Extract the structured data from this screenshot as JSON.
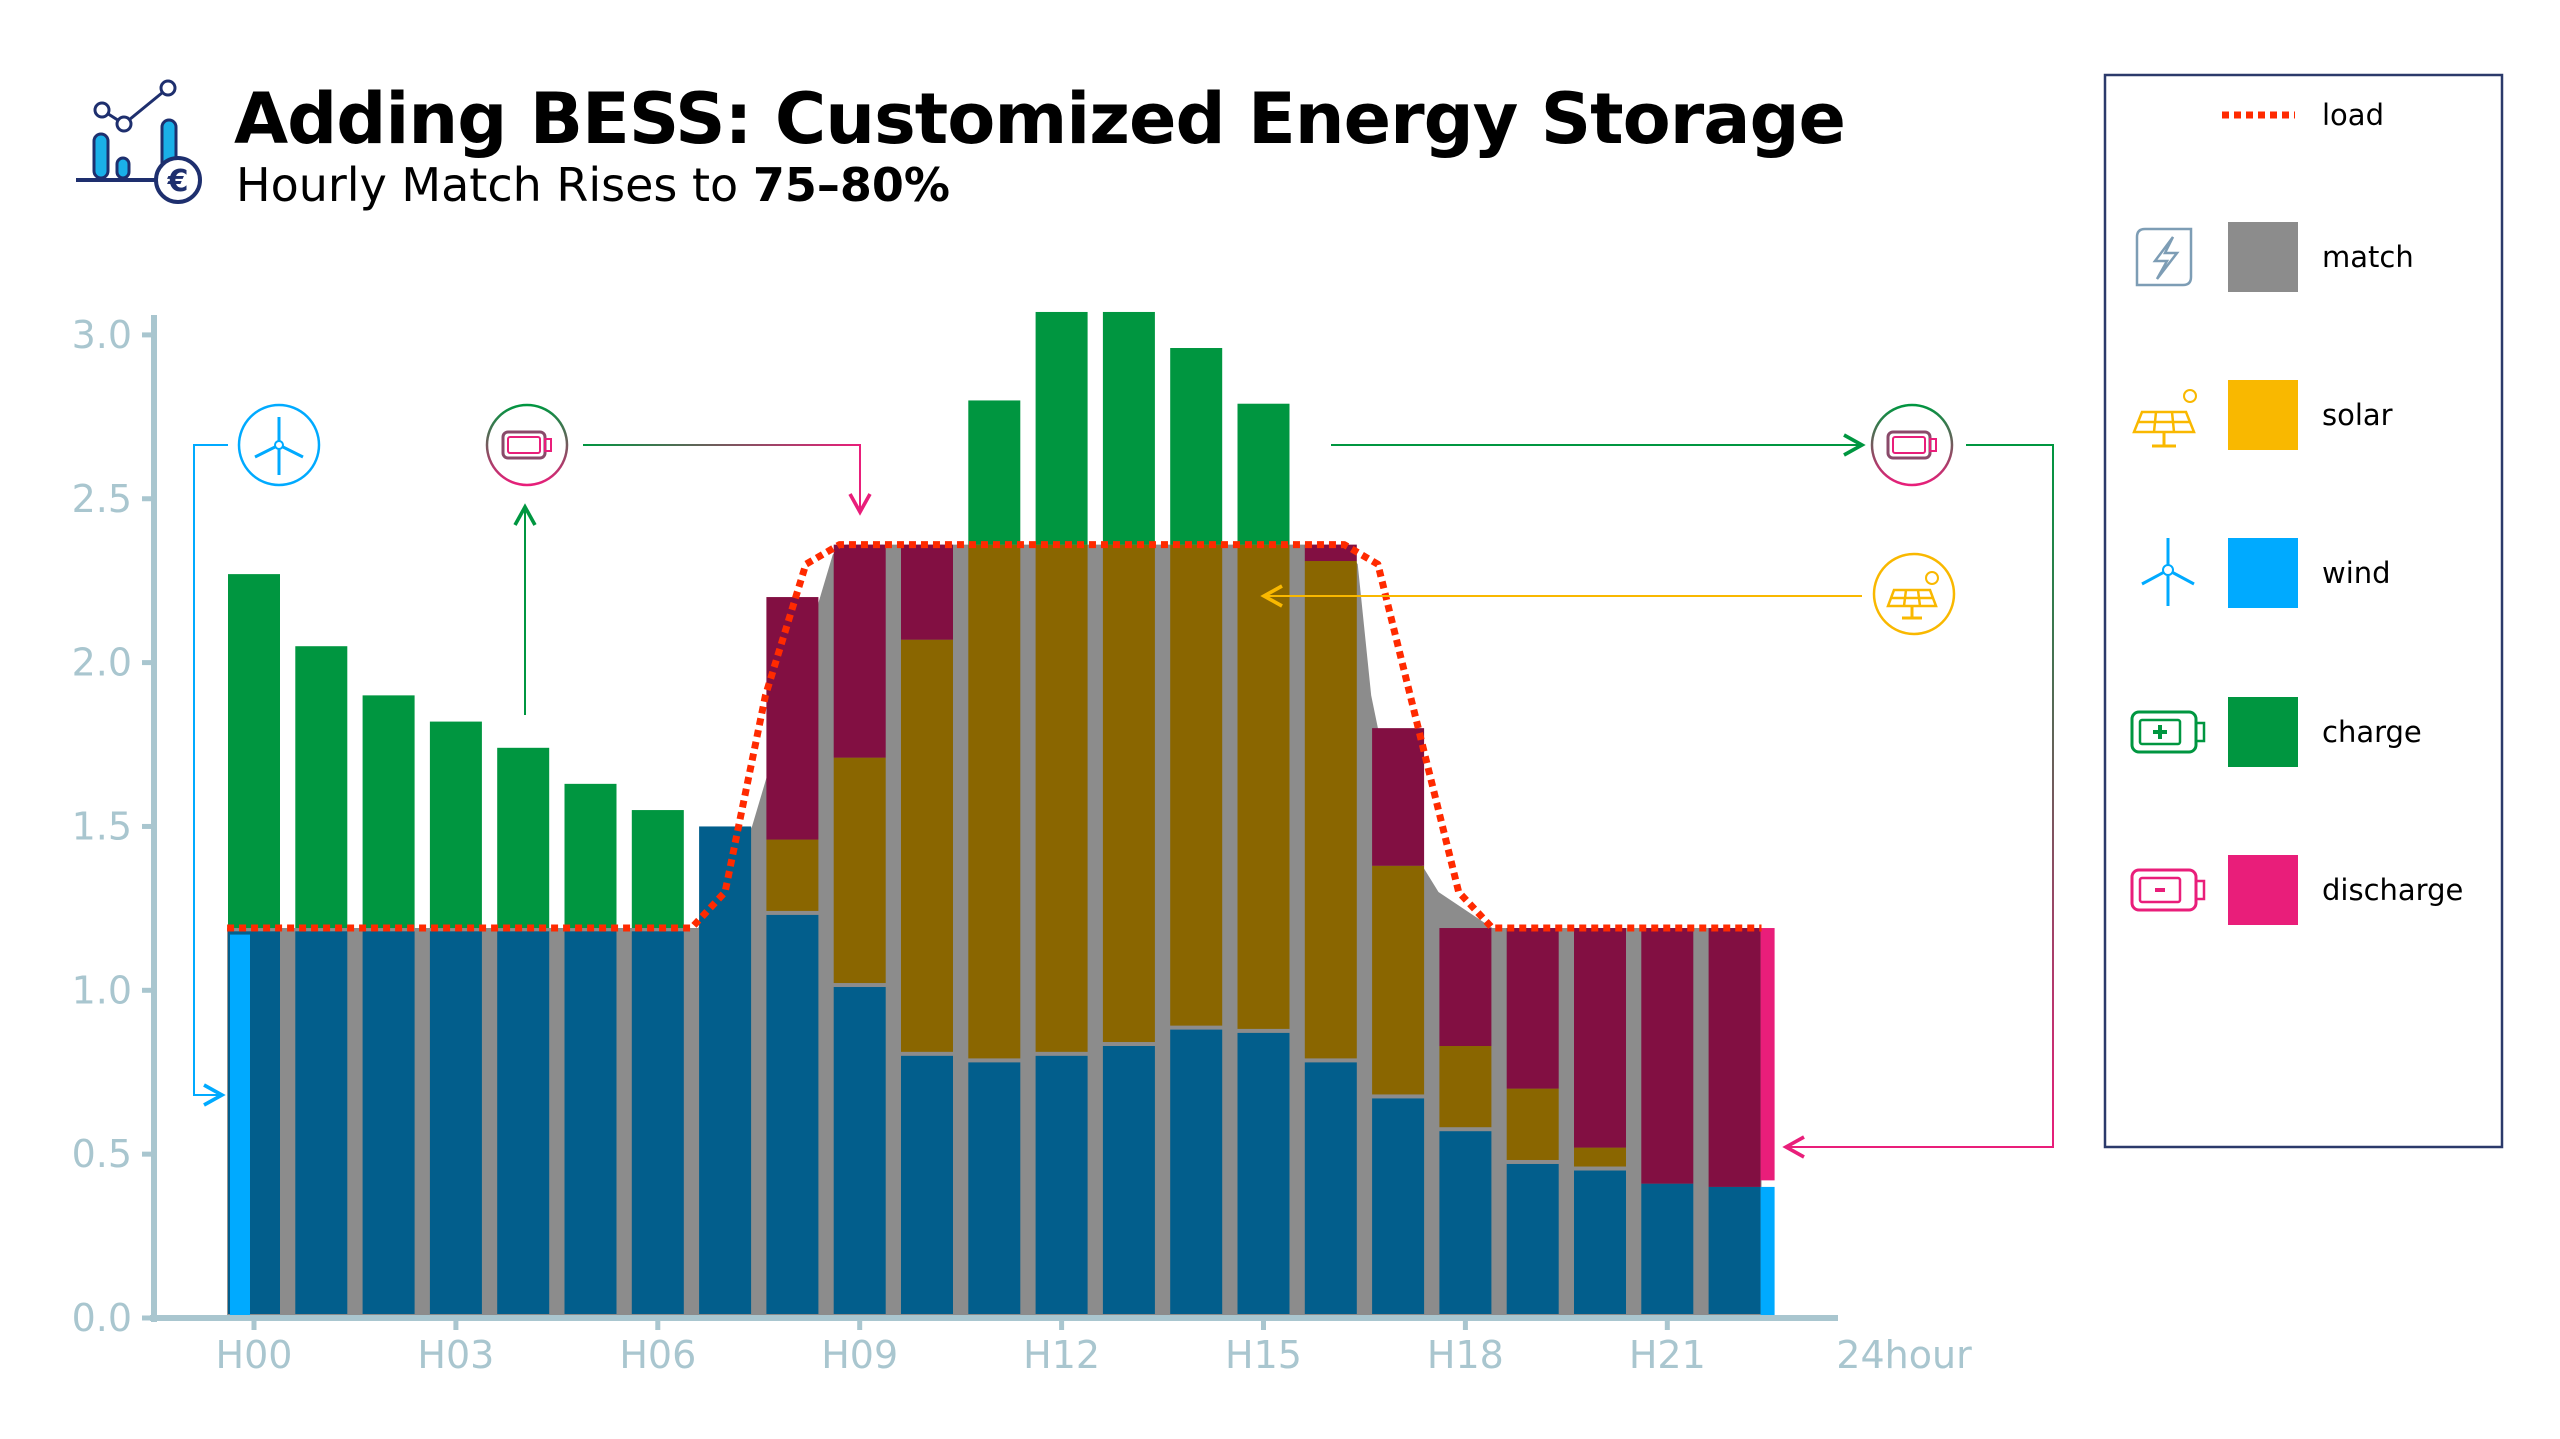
{
  "header": {
    "title": "Adding BESS: Customized Energy Storage",
    "subtitle_prefix": "Hourly Match Rises to ",
    "subtitle_bold": "75–80%"
  },
  "legend": {
    "items": [
      {
        "key": "load",
        "label": "load",
        "color": "#ff2a00",
        "icon": "dotted-line"
      },
      {
        "key": "match",
        "label": "match",
        "color": "#8c8c8c",
        "icon": "lightning-icon"
      },
      {
        "key": "solar",
        "label": "solar",
        "color": "#f9b800",
        "icon": "solar-panel-icon"
      },
      {
        "key": "wind",
        "label": "wind",
        "color": "#00aaff",
        "icon": "wind-turbine-icon"
      },
      {
        "key": "charge",
        "label": "charge",
        "color": "#009640",
        "icon": "battery-plus-icon"
      },
      {
        "key": "discharge",
        "label": "discharge",
        "color": "#e91e7a",
        "icon": "battery-minus-icon"
      }
    ]
  },
  "chart_data": {
    "type": "bar",
    "stacked": true,
    "title": "Adding BESS: Customized Energy Storage",
    "xlabel": "24hour",
    "ylabel": "",
    "ylim": [
      0,
      3.0
    ],
    "yticks": [
      "0.0",
      "0.5",
      "1.0",
      "1.5",
      "2.0",
      "2.5",
      "3.0"
    ],
    "xticks": [
      "H00",
      "H03",
      "H06",
      "H09",
      "H12",
      "H15",
      "H18",
      "H21"
    ],
    "hours": [
      0,
      1,
      2,
      3,
      4,
      5,
      6,
      7,
      8,
      9,
      10,
      11,
      12,
      13,
      14,
      15,
      16,
      17,
      18,
      19,
      20,
      21,
      22
    ],
    "series": [
      {
        "name": "wind (matched)",
        "color": "#025e8c",
        "values": [
          1.18,
          1.18,
          1.18,
          1.18,
          1.18,
          1.18,
          1.18,
          1.5,
          1.23,
          1.01,
          0.8,
          0.78,
          0.8,
          0.83,
          0.88,
          0.87,
          0.78,
          0.67,
          0.57,
          0.47,
          0.45,
          0.41,
          0.4
        ]
      },
      {
        "name": "solar (matched)",
        "color": "#8a6600",
        "values": [
          0,
          0,
          0,
          0,
          0,
          0,
          0,
          0,
          0.23,
          0.7,
          1.27,
          1.58,
          1.56,
          1.53,
          1.48,
          1.49,
          1.53,
          0.71,
          0.26,
          0.23,
          0.07,
          0,
          0
        ]
      },
      {
        "name": "discharge",
        "color": "#820f42",
        "values": [
          0,
          0,
          0,
          0,
          0,
          0,
          0,
          0,
          0.74,
          0.65,
          0.29,
          0,
          0,
          0,
          0,
          0,
          0.05,
          0.42,
          0.36,
          0.49,
          0.67,
          0.78,
          0.79
        ]
      },
      {
        "name": "charge",
        "color": "#009640",
        "values": [
          1.08,
          0.86,
          0.71,
          0.63,
          0.55,
          0.44,
          0.36,
          0.0,
          0,
          0,
          0,
          0.44,
          0.71,
          0.71,
          0.6,
          0.43,
          0,
          0,
          0,
          0,
          0,
          0,
          0
        ],
        "base": [
          1.19,
          1.19,
          1.19,
          1.19,
          1.19,
          1.19,
          1.19,
          1.19,
          0,
          0,
          0,
          2.36,
          2.36,
          2.36,
          2.36,
          2.36,
          0,
          0,
          0,
          0,
          0,
          0,
          0
        ]
      }
    ],
    "load": {
      "x": [
        -0.4,
        6.5,
        7.0,
        7.6,
        8.2,
        8.7,
        16.2,
        16.7,
        17.3,
        17.9,
        18.4,
        22.4
      ],
      "y": [
        1.19,
        1.19,
        1.3,
        1.9,
        2.3,
        2.36,
        2.36,
        2.3,
        1.8,
        1.3,
        1.19,
        1.19
      ]
    },
    "match_top": {
      "x": [
        -0.4,
        6.6,
        7.4,
        8.6,
        8.8,
        16.2,
        16.4,
        16.6,
        17.0,
        17.6,
        18.4,
        22.4
      ],
      "y": [
        1.19,
        1.19,
        1.5,
        2.33,
        2.36,
        2.36,
        2.3,
        1.9,
        1.5,
        1.3,
        1.19,
        1.19
      ]
    },
    "grid": false,
    "legend_position": "right"
  }
}
